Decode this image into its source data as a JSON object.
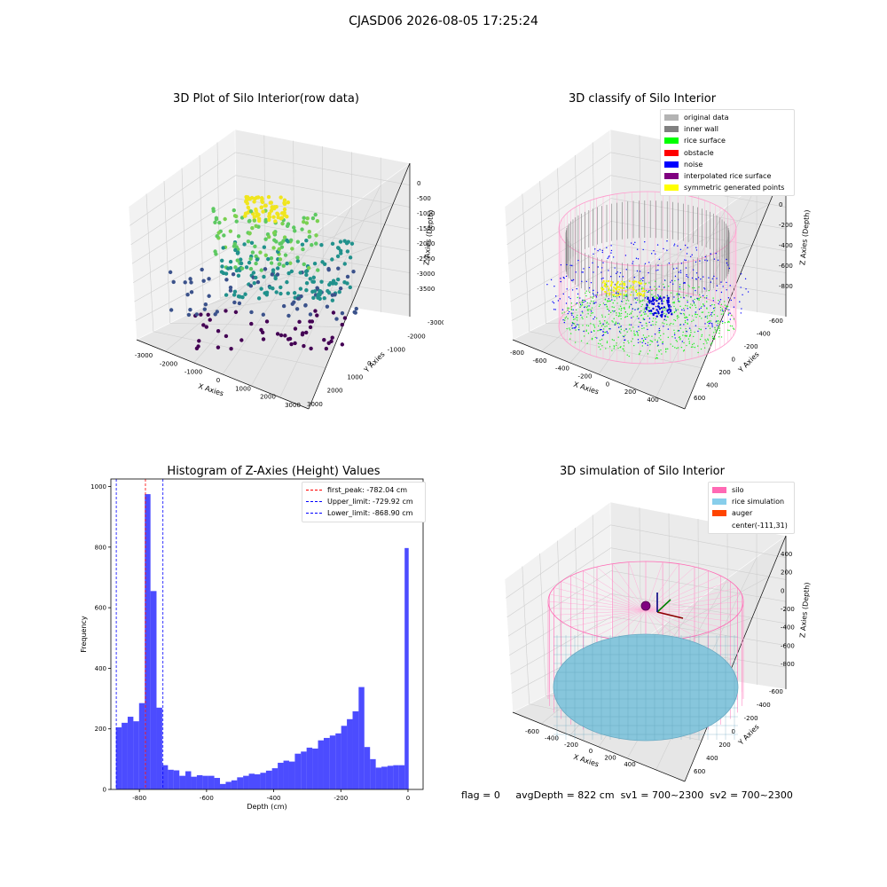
{
  "figure": {
    "suptitle": "CJASD06 2026-08-05 17:25:24",
    "footer": {
      "flag": "flag = 0",
      "avg_depth": "avgDepth = 822 cm",
      "sv1": "sv1 = 700~2300",
      "sv2": "sv2 = 700~2300"
    }
  },
  "panels": {
    "raw": {
      "title": "3D Plot of Silo Interior(row data)",
      "xlabel": "X Axies",
      "ylabel": "Y Axies",
      "zlabel": "Z Axies (Depth)",
      "xticks": [
        "-3000",
        "-2000",
        "-1000",
        "0",
        "1000",
        "2000",
        "3000"
      ],
      "yticks": [
        "-3000",
        "-2000",
        "-1000",
        "0",
        "1000",
        "2000",
        "3000"
      ],
      "zticks": [
        "0",
        "-500",
        "-1000",
        "-1500",
        "-2000",
        "-2500",
        "-3000",
        "-3500"
      ]
    },
    "classify": {
      "title": "3D classify of Silo Interior",
      "xlabel": "X Axies",
      "ylabel": "Y Axies",
      "zlabel": "Z Axies (Depth)",
      "xticks": [
        "-800",
        "-600",
        "-400",
        "-200",
        "0",
        "200",
        "400"
      ],
      "yticks": [
        "-600",
        "-400",
        "-200",
        "0",
        "200",
        "400",
        "600"
      ],
      "zticks": [
        "200",
        "0",
        "-200",
        "-400",
        "-600",
        "-800"
      ],
      "legend": [
        {
          "label": "original data",
          "color": "#b3b3b3"
        },
        {
          "label": "inner wall",
          "color": "#808080"
        },
        {
          "label": "rice surface",
          "color": "#00ff00"
        },
        {
          "label": "obstacle",
          "color": "#ff0000"
        },
        {
          "label": "noise",
          "color": "#0000ff"
        },
        {
          "label": "interpolated rice surface",
          "color": "#800080"
        },
        {
          "label": "symmetric generated points",
          "color": "#ffff00"
        }
      ]
    },
    "simulation": {
      "title": "3D simulation of Silo Interior",
      "xlabel": "X Axies",
      "ylabel": "Y Axies",
      "zlabel": "Z Axies (Depth)",
      "xticks": [
        "-600",
        "-400",
        "-200",
        "0",
        "200",
        "400"
      ],
      "yticks": [
        "-600",
        "-400",
        "-200",
        "0",
        "200",
        "400",
        "600"
      ],
      "zticks": [
        "400",
        "200",
        "0",
        "-200",
        "-400",
        "-600",
        "-800"
      ],
      "legend": [
        {
          "label": "silo",
          "color": "#ff69b4"
        },
        {
          "label": "rice simulation",
          "color": "#87ceeb"
        },
        {
          "label": "auger",
          "color": "#ff4500"
        },
        {
          "label": "center(-111,31)",
          "color": ""
        }
      ]
    }
  },
  "chart_data": {
    "type": "bar",
    "title": "Histogram of Z-Axies (Height) Values",
    "xlabel": "Depth (cm)",
    "ylabel": "Frequency",
    "xlim": [
      -885,
      45
    ],
    "ylim": [
      0,
      1025
    ],
    "xticks": [
      -800,
      -600,
      -400,
      -200,
      0
    ],
    "yticks": [
      0,
      200,
      400,
      600,
      800,
      1000
    ],
    "bar_color": "#0000ff",
    "bins": [
      {
        "x0": -870,
        "x1": -853,
        "value": 205
      },
      {
        "x0": -853,
        "x1": -835,
        "value": 220
      },
      {
        "x0": -835,
        "x1": -818,
        "value": 240
      },
      {
        "x0": -818,
        "x1": -801,
        "value": 225
      },
      {
        "x0": -801,
        "x1": -784,
        "value": 285
      },
      {
        "x0": -784,
        "x1": -767,
        "value": 975
      },
      {
        "x0": -767,
        "x1": -749,
        "value": 655
      },
      {
        "x0": -749,
        "x1": -732,
        "value": 270
      },
      {
        "x0": -732,
        "x1": -715,
        "value": 80
      },
      {
        "x0": -715,
        "x1": -698,
        "value": 65
      },
      {
        "x0": -698,
        "x1": -681,
        "value": 63
      },
      {
        "x0": -681,
        "x1": -663,
        "value": 45
      },
      {
        "x0": -663,
        "x1": -646,
        "value": 60
      },
      {
        "x0": -646,
        "x1": -629,
        "value": 42
      },
      {
        "x0": -629,
        "x1": -612,
        "value": 47
      },
      {
        "x0": -612,
        "x1": -595,
        "value": 45
      },
      {
        "x0": -595,
        "x1": -577,
        "value": 45
      },
      {
        "x0": -577,
        "x1": -560,
        "value": 38
      },
      {
        "x0": -560,
        "x1": -543,
        "value": 18
      },
      {
        "x0": -543,
        "x1": -526,
        "value": 25
      },
      {
        "x0": -526,
        "x1": -509,
        "value": 30
      },
      {
        "x0": -509,
        "x1": -491,
        "value": 40
      },
      {
        "x0": -491,
        "x1": -474,
        "value": 45
      },
      {
        "x0": -474,
        "x1": -457,
        "value": 52
      },
      {
        "x0": -457,
        "x1": -440,
        "value": 50
      },
      {
        "x0": -440,
        "x1": -423,
        "value": 55
      },
      {
        "x0": -423,
        "x1": -405,
        "value": 62
      },
      {
        "x0": -405,
        "x1": -388,
        "value": 70
      },
      {
        "x0": -388,
        "x1": -371,
        "value": 88
      },
      {
        "x0": -371,
        "x1": -354,
        "value": 95
      },
      {
        "x0": -354,
        "x1": -337,
        "value": 92
      },
      {
        "x0": -337,
        "x1": -319,
        "value": 118
      },
      {
        "x0": -319,
        "x1": -302,
        "value": 125
      },
      {
        "x0": -302,
        "x1": -285,
        "value": 138
      },
      {
        "x0": -285,
        "x1": -268,
        "value": 135
      },
      {
        "x0": -268,
        "x1": -251,
        "value": 162
      },
      {
        "x0": -251,
        "x1": -233,
        "value": 170
      },
      {
        "x0": -233,
        "x1": -216,
        "value": 178
      },
      {
        "x0": -216,
        "x1": -199,
        "value": 185
      },
      {
        "x0": -199,
        "x1": -182,
        "value": 210
      },
      {
        "x0": -182,
        "x1": -165,
        "value": 232
      },
      {
        "x0": -165,
        "x1": -147,
        "value": 258
      },
      {
        "x0": -147,
        "x1": -130,
        "value": 338
      },
      {
        "x0": -130,
        "x1": -113,
        "value": 140
      },
      {
        "x0": -113,
        "x1": -96,
        "value": 100
      },
      {
        "x0": -96,
        "x1": -79,
        "value": 72
      },
      {
        "x0": -79,
        "x1": -61,
        "value": 75
      },
      {
        "x0": -61,
        "x1": -44,
        "value": 78
      },
      {
        "x0": -44,
        "x1": -27,
        "value": 80
      },
      {
        "x0": -27,
        "x1": -10,
        "value": 80
      },
      {
        "x0": -10,
        "x1": 2,
        "value": 797
      }
    ],
    "vlines": [
      {
        "x": -782.04,
        "color": "#ff0000",
        "label": "first_peak: -782.04 cm"
      },
      {
        "x": -729.92,
        "color": "#0000ff",
        "label": "Upper_limit: -729.92 cm"
      },
      {
        "x": -868.9,
        "color": "#0000ff",
        "label": "Lower_limit: -868.90 cm"
      }
    ]
  }
}
